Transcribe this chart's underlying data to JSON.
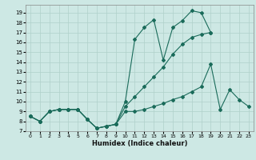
{
  "xlabel": "Humidex (Indice chaleur)",
  "xlim": [
    -0.5,
    23.5
  ],
  "ylim": [
    7,
    19.8
  ],
  "yticks": [
    7,
    8,
    9,
    10,
    11,
    12,
    13,
    14,
    15,
    16,
    17,
    18,
    19
  ],
  "xticks": [
    0,
    1,
    2,
    3,
    4,
    5,
    6,
    7,
    8,
    9,
    10,
    11,
    12,
    13,
    14,
    15,
    16,
    17,
    18,
    19,
    20,
    21,
    22,
    23
  ],
  "bg_color": "#cde8e4",
  "line_color": "#1a6b5a",
  "grid_color": "#b0d0ca",
  "lines": [
    {
      "x": [
        0,
        1,
        2,
        3,
        4,
        5,
        6,
        7,
        8,
        9,
        10,
        11,
        12,
        13,
        14,
        15,
        16,
        17,
        18,
        19
      ],
      "y": [
        8.5,
        8.0,
        9.0,
        9.2,
        9.2,
        9.2,
        8.2,
        7.3,
        7.5,
        7.7,
        10.0,
        16.3,
        17.5,
        18.3,
        14.2,
        17.5,
        18.2,
        19.2,
        19.0,
        17.0
      ]
    },
    {
      "x": [
        0,
        1,
        2,
        3,
        4,
        5,
        6,
        7,
        8,
        9,
        10,
        11,
        12,
        13,
        14,
        15,
        16,
        17,
        18,
        19
      ],
      "y": [
        8.5,
        8.0,
        9.0,
        9.2,
        9.2,
        9.2,
        8.2,
        7.3,
        7.5,
        7.7,
        9.5,
        10.5,
        11.5,
        12.5,
        13.5,
        14.8,
        15.8,
        16.5,
        16.8,
        17.0
      ]
    },
    {
      "x": [
        0,
        1,
        2,
        3,
        4,
        5,
        6,
        7,
        8,
        9,
        10,
        11,
        12,
        13,
        14,
        15,
        16,
        17,
        18,
        19,
        20,
        21,
        22,
        23
      ],
      "y": [
        8.5,
        8.0,
        9.0,
        9.2,
        9.2,
        9.2,
        8.2,
        7.3,
        7.5,
        7.7,
        9.0,
        9.0,
        9.2,
        9.5,
        9.8,
        10.2,
        10.5,
        11.0,
        11.5,
        13.8,
        9.2,
        11.2,
        10.2,
        9.5
      ]
    }
  ]
}
